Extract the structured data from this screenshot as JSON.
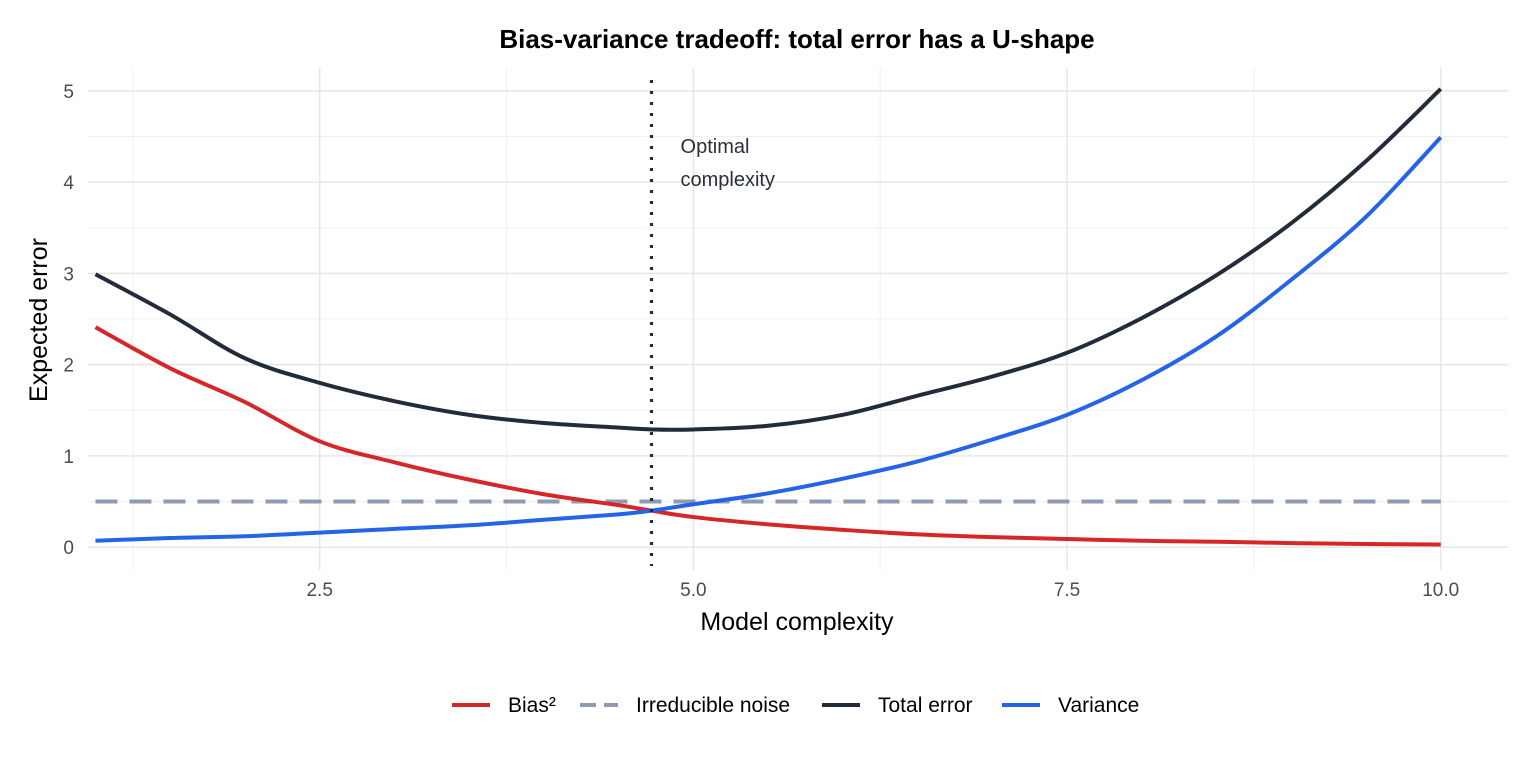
{
  "chart_data": {
    "type": "line",
    "title": "Bias-variance tradeoff: total error has a U-shape",
    "xlabel": "Model complexity",
    "ylabel": "Expected error",
    "xlim": [
      0.95,
      10.45
    ],
    "ylim": [
      -0.25,
      5.25
    ],
    "x_ticks": [
      2.5,
      5.0,
      7.5,
      10.0
    ],
    "x_tick_labels": [
      "2.5",
      "5.0",
      "7.5",
      "10.0"
    ],
    "y_ticks": [
      0,
      1,
      2,
      3,
      4,
      5
    ],
    "y_tick_labels": [
      "0",
      "1",
      "2",
      "3",
      "4",
      "5"
    ],
    "grid": true,
    "legend_position": "bottom",
    "x": [
      1.0,
      1.5,
      2.0,
      2.5,
      3.0,
      3.5,
      4.0,
      4.5,
      4.72,
      5.0,
      5.5,
      6.0,
      6.5,
      7.0,
      7.5,
      8.0,
      8.5,
      9.0,
      9.5,
      10.0
    ],
    "series": [
      {
        "name": "Bias²",
        "color": "#d62728",
        "dash": "solid",
        "values": [
          2.41,
          1.96,
          1.59,
          1.16,
          0.93,
          0.74,
          0.58,
          0.46,
          0.4,
          0.33,
          0.25,
          0.19,
          0.14,
          0.11,
          0.09,
          0.07,
          0.06,
          0.045,
          0.035,
          0.03
        ]
      },
      {
        "name": "Irreducible noise",
        "color": "#8f9bb0",
        "dash": "dashed",
        "values": [
          0.5,
          0.5,
          0.5,
          0.5,
          0.5,
          0.5,
          0.5,
          0.5,
          0.5,
          0.5,
          0.5,
          0.5,
          0.5,
          0.5,
          0.5,
          0.5,
          0.5,
          0.5,
          0.5,
          0.5
        ]
      },
      {
        "name": "Total error",
        "color": "#222b38",
        "dash": "solid",
        "values": [
          2.99,
          2.55,
          2.07,
          1.8,
          1.6,
          1.45,
          1.36,
          1.31,
          1.29,
          1.29,
          1.33,
          1.45,
          1.66,
          1.87,
          2.13,
          2.51,
          2.98,
          3.55,
          4.23,
          5.02
        ]
      },
      {
        "name": "Variance",
        "color": "#2563e8",
        "dash": "solid",
        "values": [
          0.07,
          0.1,
          0.12,
          0.16,
          0.2,
          0.24,
          0.3,
          0.36,
          0.4,
          0.47,
          0.59,
          0.75,
          0.94,
          1.18,
          1.45,
          1.83,
          2.31,
          2.93,
          3.62,
          4.49
        ]
      }
    ],
    "annotations": [
      {
        "type": "vline",
        "x": 4.72,
        "style": "dotted",
        "color": "#222b38",
        "label_lines": [
          "Optimal",
          "complexity"
        ]
      }
    ]
  }
}
